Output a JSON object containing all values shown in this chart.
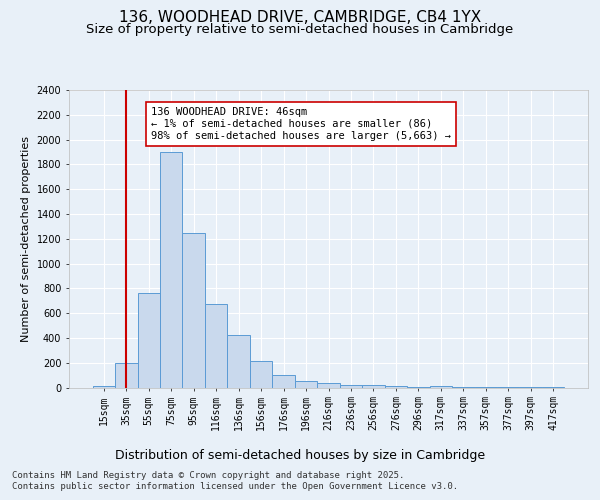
{
  "title": "136, WOODHEAD DRIVE, CAMBRIDGE, CB4 1YX",
  "subtitle": "Size of property relative to semi-detached houses in Cambridge",
  "xlabel": "Distribution of semi-detached houses by size in Cambridge",
  "ylabel": "Number of semi-detached properties",
  "categories": [
    "15sqm",
    "35sqm",
    "55sqm",
    "75sqm",
    "95sqm",
    "116sqm",
    "136sqm",
    "156sqm",
    "176sqm",
    "196sqm",
    "216sqm",
    "236sqm",
    "256sqm",
    "276sqm",
    "296sqm",
    "317sqm",
    "337sqm",
    "357sqm",
    "377sqm",
    "397sqm",
    "417sqm"
  ],
  "values": [
    15,
    200,
    760,
    1900,
    1250,
    670,
    420,
    215,
    100,
    50,
    35,
    20,
    20,
    10,
    5,
    10,
    5,
    5,
    3,
    2,
    1
  ],
  "bar_color": "#c9d9ed",
  "bar_edge_color": "#5b9bd5",
  "vline_x": 1.0,
  "vline_color": "#cc0000",
  "annotation_text": "136 WOODHEAD DRIVE: 46sqm\n← 1% of semi-detached houses are smaller (86)\n98% of semi-detached houses are larger (5,663) →",
  "annotation_box_color": "#ffffff",
  "annotation_box_edge": "#cc0000",
  "ylim": [
    0,
    2400
  ],
  "yticks": [
    0,
    200,
    400,
    600,
    800,
    1000,
    1200,
    1400,
    1600,
    1800,
    2000,
    2200,
    2400
  ],
  "footer_text": "Contains HM Land Registry data © Crown copyright and database right 2025.\nContains public sector information licensed under the Open Government Licence v3.0.",
  "bg_color": "#e8f0f8",
  "grid_color": "#ffffff",
  "title_fontsize": 11,
  "subtitle_fontsize": 9.5,
  "ylabel_fontsize": 8,
  "xlabel_fontsize": 9,
  "tick_fontsize": 7,
  "footer_fontsize": 6.5,
  "ann_fontsize": 7.5
}
